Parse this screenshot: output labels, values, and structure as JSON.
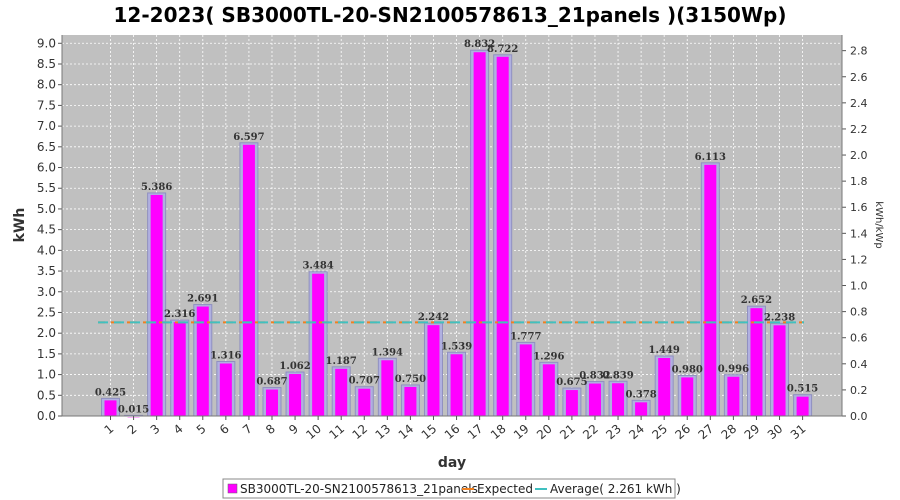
{
  "chart_data": {
    "type": "bar",
    "title": "12-2023( SB3000TL-20-SN2100578613_21panels )(3150Wp)",
    "xlabel": "day",
    "ylabel": "kWh",
    "y2label": "kWh/kWp",
    "ylim": [
      0,
      9.2
    ],
    "y2lim": [
      0,
      2.92
    ],
    "yticks": [
      "0.0",
      "0.5",
      "1.0",
      "1.5",
      "2.0",
      "2.5",
      "3.0",
      "3.5",
      "4.0",
      "4.5",
      "5.0",
      "5.5",
      "6.0",
      "6.5",
      "7.0",
      "7.5",
      "8.0",
      "8.5",
      "9.0"
    ],
    "y2ticks": [
      "0.0",
      "0.2",
      "0.4",
      "0.6",
      "0.8",
      "1.0",
      "1.2",
      "1.4",
      "1.6",
      "1.8",
      "2.0",
      "2.2",
      "2.4",
      "2.6",
      "2.8"
    ],
    "grid": true,
    "categories": [
      "1",
      "2",
      "3",
      "4",
      "5",
      "6",
      "7",
      "8",
      "9",
      "10",
      "11",
      "12",
      "13",
      "14",
      "15",
      "16",
      "17",
      "18",
      "19",
      "20",
      "21",
      "22",
      "23",
      "24",
      "25",
      "26",
      "27",
      "28",
      "29",
      "30",
      "31"
    ],
    "series": [
      {
        "name": "SB3000TL-20-SN2100578613_21panels",
        "color": "#ff00ff",
        "values": [
          0.425,
          0.015,
          5.386,
          2.316,
          2.691,
          1.316,
          6.597,
          0.687,
          1.062,
          3.484,
          1.187,
          0.707,
          1.394,
          0.75,
          2.242,
          1.539,
          8.832,
          8.722,
          1.777,
          1.296,
          0.675,
          0.832,
          0.839,
          0.378,
          1.449,
          0.98,
          6.113,
          0.996,
          2.652,
          2.238,
          0.515
        ],
        "labels": [
          "0.425",
          "0.015",
          "5.386",
          "2.316",
          "2.691",
          "1.316",
          "6.597",
          "0.687",
          "1.062",
          "3.484",
          "1.187",
          "0.707",
          "1.394",
          "0.750",
          "2.242",
          "1.539",
          "8.832",
          "8.722",
          "1.777",
          "1.296",
          "0.675",
          "0.832",
          "0.839",
          "0.378",
          "1.449",
          "0.980",
          "6.113",
          "0.996",
          "2.652",
          "2.238",
          "0.515"
        ]
      }
    ],
    "expected": {
      "name": "Expected",
      "color": "#f08020"
    },
    "average": {
      "name": "Average( 2.261 kWh )",
      "value": 2.261,
      "color": "#40c0c0"
    },
    "legend_position": "bottom"
  }
}
